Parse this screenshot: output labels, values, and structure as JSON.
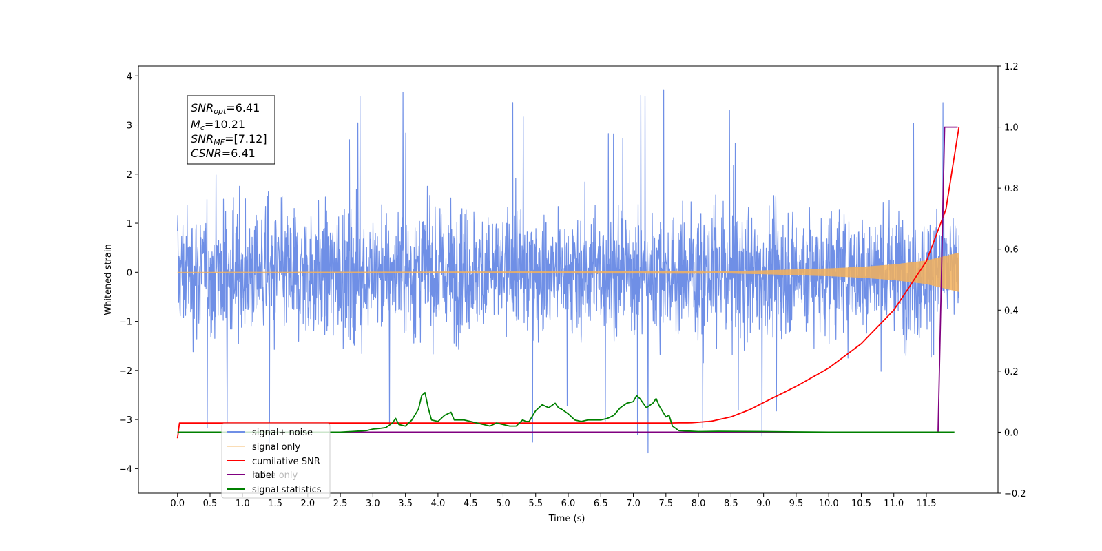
{
  "chart_data": {
    "type": "line",
    "xlabel": "Time (s)",
    "ylabel_left": "Whitened strain",
    "ylabel_right": "",
    "xlim": [
      -0.6,
      12.6
    ],
    "ylim_left": [
      -4.5,
      4.2
    ],
    "ylim_right": [
      -0.2,
      1.2
    ],
    "x_ticks": [
      "0.0",
      "0.5",
      "1.0",
      "1.5",
      "2.0",
      "2.5",
      "3.0",
      "3.5",
      "4.0",
      "4.5",
      "5.0",
      "5.5",
      "6.0",
      "6.5",
      "7.0",
      "7.5",
      "8.0",
      "8.5",
      "9.0",
      "9.5",
      "10.0",
      "10.5",
      "11.0",
      "11.5"
    ],
    "y_ticks_left": [
      "4",
      "3",
      "2",
      "1",
      "0",
      "−1",
      "−2",
      "−3",
      "−4"
    ],
    "y_ticks_right": [
      "1.2",
      "1.0",
      "0.8",
      "0.6",
      "0.4",
      "0.2",
      "0.0",
      "−0.2"
    ],
    "grid": false,
    "legend_position": "lower-left",
    "colors": {
      "signal_noise": "#6f8fe6",
      "signal_only": "#f5b25a",
      "cumulative_snr": "#ff0000",
      "label": "#800080",
      "signal_statistics": "#008000"
    },
    "legend": [
      {
        "key": "signal_noise",
        "label": "signal+ noise"
      },
      {
        "key": "signal_only",
        "label": "signal only"
      },
      {
        "key": "cumulative_snr",
        "label": "cumilative SNR"
      },
      {
        "key": "label",
        "label": "label"
      },
      {
        "key": "signal_statistics",
        "label": "signal statistics"
      }
    ],
    "legend_hidden_text": "noise only",
    "annotation": {
      "line1_main": "SNR",
      "line1_sub": "opt",
      "line1_val": "=6.41",
      "line2_main": "M",
      "line2_sub": "c",
      "line2_val": "=10.21",
      "line3_main": "SNR",
      "line3_sub": "MF",
      "line3_val": "=[7.12]",
      "line4_main": "CSNR",
      "line4_val": "=6.41"
    },
    "series": [
      {
        "key": "signal_noise",
        "axis": "left",
        "description": "whitened strain noise, roughly ±2.3 with spikes to ±3.8, 0–12 s"
      },
      {
        "key": "signal_only",
        "axis": "left",
        "envelope": {
          "x": [
            0,
            8.0,
            9.0,
            10.0,
            10.5,
            11.0,
            11.5,
            12.0
          ],
          "amp": [
            0,
            0.01,
            0.04,
            0.08,
            0.11,
            0.16,
            0.24,
            0.4
          ]
        }
      },
      {
        "key": "cumulative_snr",
        "axis": "right",
        "x": [
          0,
          0.03,
          7.5,
          7.9,
          8.2,
          8.5,
          8.8,
          9.0,
          9.5,
          10.0,
          10.5,
          11.0,
          11.5,
          11.8,
          12.0
        ],
        "y": [
          -0.02,
          0.03,
          0.03,
          0.031,
          0.036,
          0.05,
          0.075,
          0.097,
          0.15,
          0.21,
          0.29,
          0.4,
          0.56,
          0.73,
          1.0
        ]
      },
      {
        "key": "label",
        "axis": "right",
        "x": [
          0,
          11.68,
          11.78,
          11.98
        ],
        "y": [
          0,
          0,
          1.0,
          1.0
        ]
      },
      {
        "key": "signal_statistics",
        "axis": "right",
        "x": [
          0,
          2.5,
          2.9,
          3.0,
          3.1,
          3.2,
          3.3,
          3.35,
          3.4,
          3.5,
          3.6,
          3.7,
          3.75,
          3.8,
          3.85,
          3.9,
          4.0,
          4.1,
          4.2,
          4.25,
          4.3,
          4.4,
          4.5,
          4.6,
          4.7,
          4.8,
          4.9,
          5.0,
          5.1,
          5.2,
          5.3,
          5.35,
          5.4,
          5.5,
          5.6,
          5.65,
          5.7,
          5.8,
          5.85,
          5.9,
          6.0,
          6.1,
          6.2,
          6.3,
          6.4,
          6.5,
          6.6,
          6.7,
          6.8,
          6.9,
          7.0,
          7.05,
          7.1,
          7.2,
          7.3,
          7.35,
          7.4,
          7.5,
          7.55,
          7.6,
          7.7,
          8.0,
          8.3,
          9.0,
          9.5,
          10.0,
          11.0,
          11.93
        ],
        "y": [
          0,
          0,
          0.005,
          0.01,
          0.012,
          0.015,
          0.03,
          0.045,
          0.025,
          0.02,
          0.04,
          0.075,
          0.12,
          0.13,
          0.08,
          0.04,
          0.035,
          0.055,
          0.065,
          0.04,
          0.04,
          0.04,
          0.035,
          0.03,
          0.025,
          0.02,
          0.03,
          0.025,
          0.02,
          0.02,
          0.04,
          0.035,
          0.035,
          0.07,
          0.09,
          0.085,
          0.08,
          0.095,
          0.08,
          0.075,
          0.06,
          0.04,
          0.035,
          0.04,
          0.04,
          0.04,
          0.045,
          0.055,
          0.08,
          0.095,
          0.1,
          0.12,
          0.11,
          0.08,
          0.095,
          0.11,
          0.085,
          0.05,
          0.055,
          0.02,
          0.005,
          0.002,
          0.003,
          0.002,
          0.001,
          0,
          0,
          0
        ]
      }
    ]
  }
}
